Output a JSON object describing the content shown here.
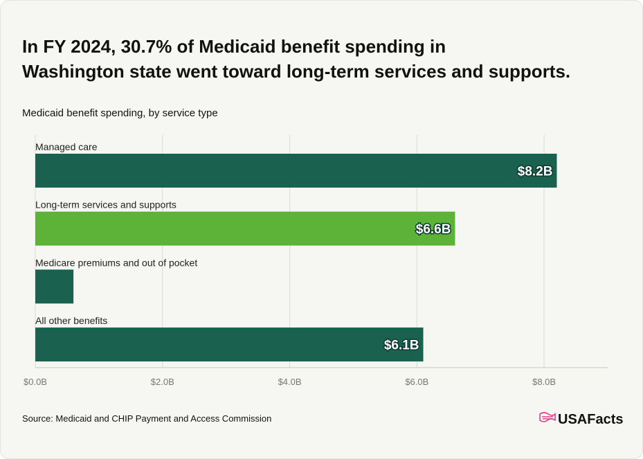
{
  "chart_data": {
    "type": "hbar",
    "title": "In FY 2024, 30.7% of Medicaid benefit spending in Washington state went toward long-term services and supports.",
    "subtitle": "Medicaid benefit spending, by service type",
    "categories": [
      "Managed care",
      "Long-term services and supports",
      "Medicare premiums and out of pocket",
      "All other benefits"
    ],
    "values": [
      8.2,
      6.6,
      0.6,
      6.1
    ],
    "value_labels": [
      "$8.2B",
      "$6.6B",
      null,
      "$6.1B"
    ],
    "colors": [
      "#1b6150",
      "#5cb338",
      "#1b6150",
      "#1b6150"
    ],
    "xlim": [
      0,
      9
    ],
    "xticks": [
      {
        "value": 0,
        "label": "$0.0B"
      },
      {
        "value": 2,
        "label": "$2.0B"
      },
      {
        "value": 4,
        "label": "$4.0B"
      },
      {
        "value": 6,
        "label": "$6.0B"
      },
      {
        "value": 8,
        "label": "$8.0B"
      }
    ],
    "grid": true,
    "source": "Source: Medicaid and CHIP Payment and Access Commission",
    "logo": "USAFacts"
  }
}
